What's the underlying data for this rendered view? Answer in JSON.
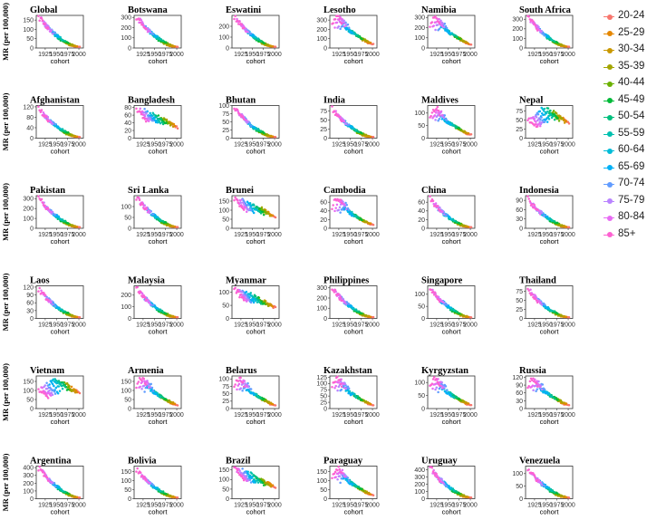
{
  "chart_data": {
    "type": "scatter",
    "ylabel": "MR (per 100,000)",
    "xlabel": "cohort",
    "x_ticks": [
      1925,
      1950,
      1975,
      2000
    ],
    "xlim": [
      1905,
      2010
    ],
    "legend_position": "right",
    "series_colors": [
      "#f8766d",
      "#e58700",
      "#c99800",
      "#a3a500",
      "#6bb100",
      "#00ba38",
      "#00bf7d",
      "#00c0af",
      "#00bcd8",
      "#00b0f6",
      "#619cff",
      "#b983ff",
      "#e76bf3",
      "#fd61d1"
    ],
    "series": [
      {
        "name": "20-24"
      },
      {
        "name": "25-29"
      },
      {
        "name": "30-34"
      },
      {
        "name": "35-39"
      },
      {
        "name": "40-44"
      },
      {
        "name": "45-49"
      },
      {
        "name": "50-54"
      },
      {
        "name": "55-59"
      },
      {
        "name": "60-64"
      },
      {
        "name": "65-69"
      },
      {
        "name": "70-74"
      },
      {
        "name": "75-79"
      },
      {
        "name": "80-84"
      },
      {
        "name": "85+"
      }
    ],
    "panels": [
      {
        "title": "Global",
        "yticks": [
          0,
          50,
          100,
          150
        ],
        "ymax": 175,
        "peak": 170,
        "shape": "decline"
      },
      {
        "title": "Botswana",
        "yticks": [
          0,
          100,
          200,
          300
        ],
        "ymax": 320,
        "peak": 310,
        "shape": "decline"
      },
      {
        "title": "Eswatini",
        "yticks": [
          0,
          100,
          200
        ],
        "ymax": 300,
        "peak": 290,
        "shape": "decline"
      },
      {
        "title": "Lesotho",
        "yticks": [
          0,
          100,
          200,
          300
        ],
        "ymax": 350,
        "peak": 340,
        "shape": "hump"
      },
      {
        "title": "Namibia",
        "yticks": [
          0,
          100,
          200,
          300
        ],
        "ymax": 320,
        "peak": 300,
        "shape": "hump"
      },
      {
        "title": "South Africa",
        "yticks": [
          0,
          100,
          200,
          300
        ],
        "ymax": 340,
        "peak": 330,
        "shape": "decline"
      },
      {
        "title": "Afghanistan",
        "yticks": [
          0,
          40,
          80,
          120
        ],
        "ymax": 125,
        "peak": 115,
        "shape": "decline"
      },
      {
        "title": "Bangladesh",
        "yticks": [
          0,
          20,
          40,
          60,
          80
        ],
        "ymax": 85,
        "peak": 78,
        "shape": "flat"
      },
      {
        "title": "Bhutan",
        "yticks": [
          0,
          25,
          50,
          75,
          100
        ],
        "ymax": 100,
        "peak": 95,
        "shape": "decline"
      },
      {
        "title": "India",
        "yticks": [
          0,
          25,
          50,
          75
        ],
        "ymax": 90,
        "peak": 82,
        "shape": "decline"
      },
      {
        "title": "Maldives",
        "yticks": [
          0,
          50,
          100
        ],
        "ymax": 130,
        "peak": 120,
        "shape": "hump"
      },
      {
        "title": "Nepal",
        "yticks": [
          0,
          25,
          50,
          75
        ],
        "ymax": 90,
        "peak": 85,
        "shape": "rise"
      },
      {
        "title": "Pakistan",
        "yticks": [
          0,
          100,
          200,
          300
        ],
        "ymax": 330,
        "peak": 310,
        "shape": "decline"
      },
      {
        "title": "Sri Lanka",
        "yticks": [
          0,
          50,
          100
        ],
        "ymax": 150,
        "peak": 145,
        "shape": "decline"
      },
      {
        "title": "Brunei",
        "yticks": [
          0,
          50,
          100,
          150
        ],
        "ymax": 180,
        "peak": 170,
        "shape": "flat"
      },
      {
        "title": "Cambodia",
        "yticks": [
          0,
          20,
          40,
          60
        ],
        "ymax": 75,
        "peak": 68,
        "shape": "hump"
      },
      {
        "title": "China",
        "yticks": [
          0,
          20,
          40,
          60
        ],
        "ymax": 75,
        "peak": 68,
        "shape": "decline"
      },
      {
        "title": "Indonesia",
        "yticks": [
          0,
          30,
          60,
          90
        ],
        "ymax": 105,
        "peak": 95,
        "shape": "decline"
      },
      {
        "title": "Laos",
        "yticks": [
          0,
          30,
          60,
          90,
          120
        ],
        "ymax": 125,
        "peak": 115,
        "shape": "decline"
      },
      {
        "title": "Malaysia",
        "yticks": [
          0,
          100,
          200
        ],
        "ymax": 280,
        "peak": 260,
        "shape": "decline"
      },
      {
        "title": "Myanmar",
        "yticks": [
          0,
          50,
          100
        ],
        "ymax": 125,
        "peak": 115,
        "shape": "flat"
      },
      {
        "title": "Philippines",
        "yticks": [
          0,
          100,
          200,
          300
        ],
        "ymax": 320,
        "peak": 300,
        "shape": "decline"
      },
      {
        "title": "Singapore",
        "yticks": [
          0,
          50,
          100
        ],
        "ymax": 135,
        "peak": 125,
        "shape": "decline"
      },
      {
        "title": "Thailand",
        "yticks": [
          0,
          25,
          50,
          75
        ],
        "ymax": 90,
        "peak": 82,
        "shape": "decline"
      },
      {
        "title": "Vietnam",
        "yticks": [
          0,
          50,
          100,
          150
        ],
        "ymax": 180,
        "peak": 170,
        "shape": "rise"
      },
      {
        "title": "Armenia",
        "yticks": [
          0,
          50,
          100,
          150
        ],
        "ymax": 180,
        "peak": 165,
        "shape": "hump"
      },
      {
        "title": "Belarus",
        "yticks": [
          0,
          25,
          50,
          75,
          100
        ],
        "ymax": 110,
        "peak": 100,
        "shape": "hump"
      },
      {
        "title": "Kazakhstan",
        "yticks": [
          0,
          25,
          50,
          75,
          100,
          125
        ],
        "ymax": 130,
        "peak": 120,
        "shape": "hump"
      },
      {
        "title": "Kyrgyzstan",
        "yticks": [
          0,
          50,
          100
        ],
        "ymax": 125,
        "peak": 115,
        "shape": "hump"
      },
      {
        "title": "Russia",
        "yticks": [
          0,
          30,
          60,
          90,
          120
        ],
        "ymax": 125,
        "peak": 115,
        "shape": "hump"
      },
      {
        "title": "Argentina",
        "yticks": [
          0,
          100,
          200,
          300,
          400
        ],
        "ymax": 420,
        "peak": 400,
        "shape": "decline"
      },
      {
        "title": "Bolivia",
        "yticks": [
          0,
          50,
          100,
          150
        ],
        "ymax": 180,
        "peak": 165,
        "shape": "decline"
      },
      {
        "title": "Brazil",
        "yticks": [
          0,
          50,
          100,
          150
        ],
        "ymax": 170,
        "peak": 160,
        "shape": "flat"
      },
      {
        "title": "Paraguay",
        "yticks": [
          0,
          50,
          100,
          150
        ],
        "ymax": 180,
        "peak": 170,
        "shape": "hump"
      },
      {
        "title": "Uruguay",
        "yticks": [
          0,
          100,
          200,
          300,
          400
        ],
        "ymax": 450,
        "peak": 430,
        "shape": "decline"
      },
      {
        "title": "Venezuela",
        "yticks": [
          0,
          50,
          100
        ],
        "ymax": 130,
        "peak": 120,
        "shape": "decline"
      }
    ]
  }
}
